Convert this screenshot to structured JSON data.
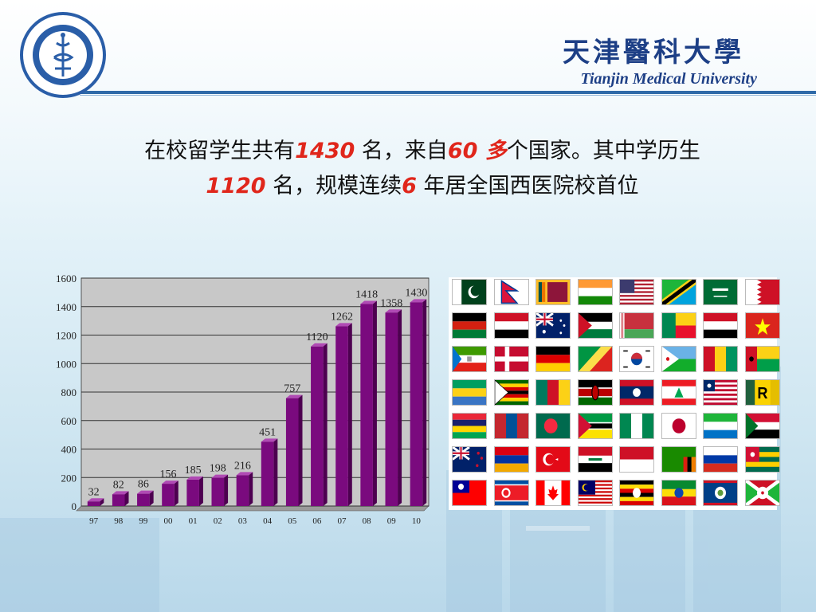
{
  "brand": {
    "name_cn": "天津醫科大學",
    "name_en": "Tianjin Medical University",
    "logo_text": "天津醫科大學 · TIANJIN MEDICAL UNIVERSITY"
  },
  "headline": {
    "p1": "在校留学生共有",
    "n1": "1430",
    "p2": " 名，来自",
    "n2": "60 多",
    "p3": "个国家。其中学历生",
    "n3": "1120",
    "p4": " 名，规模连续",
    "n4": "6",
    "p5": " 年居全国西医院校首位"
  },
  "colors": {
    "accent": "#e0261b",
    "brand_blue": "#1d3f86",
    "bar": "#7a0a7e"
  },
  "chart_data": {
    "type": "bar",
    "categories": [
      "97",
      "98",
      "99",
      "00",
      "01",
      "02",
      "03",
      "04",
      "05",
      "06",
      "07",
      "08",
      "09",
      "10"
    ],
    "values": [
      32,
      82,
      86,
      156,
      185,
      198,
      216,
      451,
      757,
      1120,
      1262,
      1418,
      1358,
      1430
    ],
    "title": "",
    "xlabel": "",
    "ylabel": "",
    "ylim": [
      0,
      1600
    ],
    "yticks": [
      0,
      200,
      400,
      600,
      800,
      1000,
      1200,
      1400,
      1600
    ],
    "grid": true,
    "data_labels": true
  },
  "flags": [
    "pakistan-flag",
    "nepal-flag",
    "sri-lanka-flag",
    "india-flag",
    "usa-flag",
    "tanzania-flag",
    "saudi-arabia-flag",
    "bahrain-flag",
    "afghanistan-flag",
    "egypt-flag",
    "australia-flag",
    "palestine-flag",
    "belarus-flag",
    "benin-flag",
    "yemen-flag",
    "vietnam-flag",
    "equatorial-guinea-flag",
    "denmark-flag",
    "germany-flag",
    "congo-flag",
    "south-korea-flag",
    "djibouti-flag",
    "guinea-flag",
    "guinea-bissau-flag",
    "gabon-flag",
    "zimbabwe-flag",
    "cameroon-flag",
    "kenya-flag",
    "laos-flag",
    "lebanon-flag",
    "liberia-flag",
    "rwanda-flag",
    "mauritius-flag",
    "mongolia-flag",
    "bangladesh-flag",
    "mozambique-flag",
    "nigeria-flag",
    "japan-flag",
    "sierra-leone-flag",
    "sudan-flag",
    "new-zealand-flag",
    "armenia-flag",
    "turkey-flag",
    "iraq-flag",
    "indonesia-flag",
    "zambia-flag",
    "russia-flag",
    "togo-flag",
    "taiwan-flag",
    "north-korea-flag",
    "canada-flag",
    "malaysia-flag",
    "uganda-flag",
    "ethiopia-flag",
    "belize-flag",
    "burundi-flag"
  ]
}
